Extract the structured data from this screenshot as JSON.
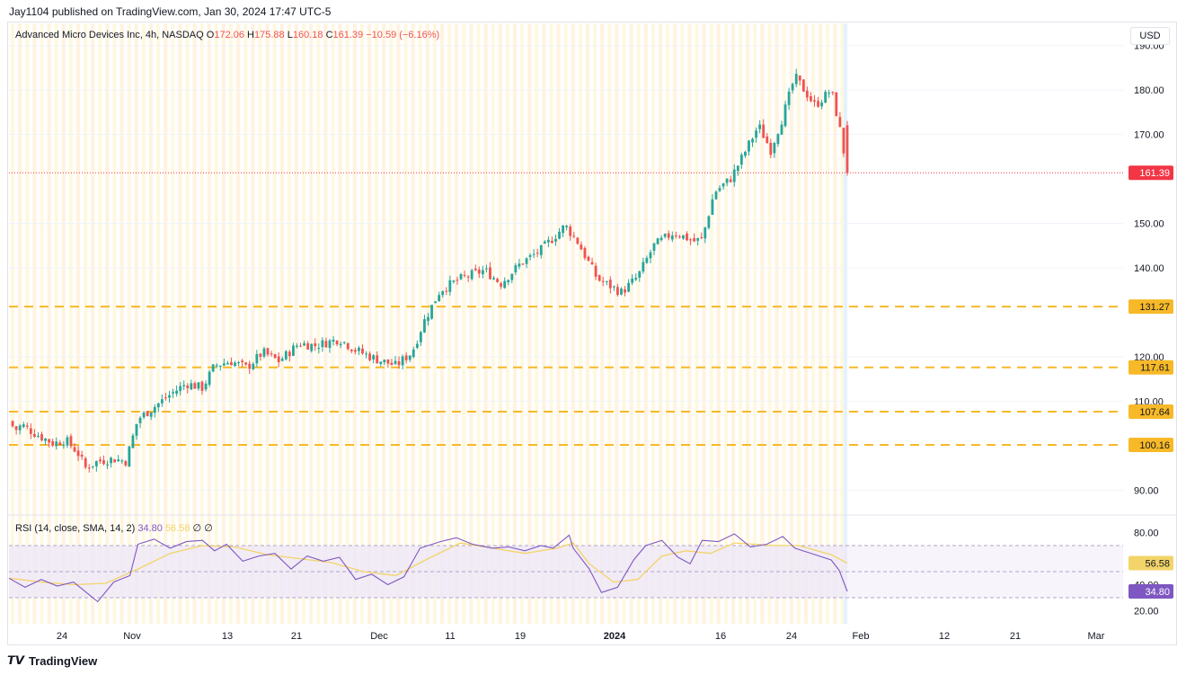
{
  "header": {
    "published": "Jay1104 published on TradingView.com, Jan 30, 2024 17:47 UTC-5"
  },
  "legend": {
    "symbol": "Advanced Micro Devices Inc, 4h, NASDAQ",
    "o_label": "O",
    "o_value": "172.06",
    "h_label": "H",
    "h_value": "175.88",
    "l_label": "L",
    "l_value": "160.18",
    "c_label": "C",
    "c_value": "161.39",
    "change": "−10.59 (−6.16%)"
  },
  "currency": "USD",
  "rsi_legend": {
    "label": "RSI (14, close, SMA, 14, 2)",
    "rsi": "34.80",
    "sma": "56.58",
    "sym1": "∅",
    "sym2": "∅"
  },
  "footer": {
    "brand": "TradingView"
  },
  "colors": {
    "up": "#26a69a",
    "down": "#ef5350",
    "level": "#f7b928",
    "rsi": "#7e57c2",
    "rsi_sma": "#f3d468",
    "rsi_band": "#ede7f6",
    "last_price": "#f23645"
  },
  "chart_data": [
    {
      "type": "candlestick",
      "title": "Advanced Micro Devices Inc, 4h, NASDAQ",
      "y_axis": {
        "range": [
          85,
          195
        ],
        "ticks": [
          "90.00",
          "110.00",
          "120.00",
          "140.00",
          "150.00",
          "170.00",
          "180.00",
          "190.00"
        ],
        "tick_values": [
          90,
          110,
          120,
          140,
          150,
          170,
          180,
          190
        ]
      },
      "x_axis": {
        "tick_labels": [
          "24",
          "Nov",
          "13",
          "21",
          "Dec",
          "11",
          "19",
          "2024",
          "16",
          "24",
          "Feb",
          "12",
          "21",
          "Mar"
        ]
      },
      "price_path": [
        [
          105.5,
          0
        ],
        [
          103.5,
          0.008
        ],
        [
          104.7,
          0.016
        ],
        [
          103,
          0.03
        ],
        [
          100.5,
          0.055
        ],
        [
          101.3,
          0.07
        ],
        [
          98.5,
          0.085
        ],
        [
          95,
          0.095
        ],
        [
          96.5,
          0.11
        ],
        [
          97,
          0.13
        ],
        [
          96.5,
          0.145
        ],
        [
          106,
          0.16
        ],
        [
          108,
          0.175
        ],
        [
          111.5,
          0.2
        ],
        [
          114,
          0.22
        ],
        [
          113,
          0.24
        ],
        [
          118,
          0.255
        ],
        [
          119,
          0.275
        ],
        [
          117.5,
          0.295
        ],
        [
          121,
          0.315
        ],
        [
          119,
          0.335
        ],
        [
          123,
          0.36
        ],
        [
          122.5,
          0.38
        ],
        [
          124,
          0.41
        ],
        [
          121.5,
          0.43
        ],
        [
          119.5,
          0.455
        ],
        [
          118,
          0.48
        ],
        [
          121,
          0.5
        ],
        [
          128,
          0.515
        ],
        [
          135,
          0.535
        ],
        [
          137.5,
          0.56
        ],
        [
          139.5,
          0.59
        ],
        [
          136.5,
          0.61
        ],
        [
          141,
          0.635
        ],
        [
          144,
          0.66
        ],
        [
          149.5,
          0.69
        ],
        [
          146,
          0.705
        ],
        [
          137.5,
          0.73
        ],
        [
          134.5,
          0.76
        ],
        [
          138,
          0.78
        ],
        [
          145,
          0.8
        ],
        [
          148,
          0.825
        ],
        [
          146,
          0.85
        ],
        [
          146.5,
          0.86
        ],
        [
          157,
          0.875
        ],
        [
          160,
          0.895
        ],
        [
          165,
          0.91
        ],
        [
          172,
          0.93
        ],
        [
          166.5,
          0.945
        ],
        [
          174,
          0.96
        ],
        [
          183,
          0.975
        ],
        [
          176.5,
          1.0
        ],
        [
          180,
          1.02
        ],
        [
          172.06,
          1.03
        ],
        [
          161.39,
          1.04
        ]
      ],
      "last_close": 161.39,
      "horizontal_levels": [
        131.27,
        117.61,
        107.64,
        100.16
      ],
      "level_labels": [
        "131.27",
        "117.61",
        "107.64",
        "100.16"
      ],
      "last_price_label": "161.39"
    },
    {
      "type": "line",
      "title": "RSI (14, close, SMA, 14, 2)",
      "y_axis": {
        "range": [
          10,
          90
        ],
        "ticks": [
          "20.00",
          "40.00",
          "80.00"
        ],
        "tick_values": [
          20,
          40,
          80
        ]
      },
      "bands": [
        30,
        70
      ],
      "series": [
        {
          "name": "RSI",
          "last": 34.8,
          "path": [
            [
              45,
              0
            ],
            [
              38,
              0.02
            ],
            [
              44,
              0.04
            ],
            [
              39,
              0.06
            ],
            [
              42,
              0.08
            ],
            [
              32,
              0.1
            ],
            [
              27,
              0.11
            ],
            [
              42,
              0.13
            ],
            [
              47,
              0.15
            ],
            [
              71,
              0.16
            ],
            [
              75,
              0.18
            ],
            [
              68,
              0.2
            ],
            [
              73,
              0.22
            ],
            [
              74,
              0.24
            ],
            [
              66,
              0.255
            ],
            [
              71,
              0.27
            ],
            [
              58,
              0.29
            ],
            [
              62,
              0.31
            ],
            [
              64,
              0.33
            ],
            [
              52,
              0.35
            ],
            [
              62,
              0.37
            ],
            [
              58,
              0.39
            ],
            [
              61,
              0.41
            ],
            [
              44,
              0.43
            ],
            [
              48,
              0.45
            ],
            [
              40,
              0.47
            ],
            [
              46,
              0.49
            ],
            [
              68,
              0.51
            ],
            [
              73,
              0.535
            ],
            [
              76,
              0.555
            ],
            [
              71,
              0.575
            ],
            [
              68,
              0.6
            ],
            [
              69,
              0.62
            ],
            [
              66,
              0.64
            ],
            [
              70,
              0.66
            ],
            [
              68,
              0.675
            ],
            [
              78,
              0.695
            ],
            [
              68,
              0.7
            ],
            [
              52,
              0.72
            ],
            [
              34,
              0.735
            ],
            [
              38,
              0.755
            ],
            [
              59,
              0.775
            ],
            [
              70,
              0.79
            ],
            [
              74,
              0.81
            ],
            [
              61,
              0.83
            ],
            [
              56,
              0.845
            ],
            [
              74,
              0.86
            ],
            [
              73,
              0.88
            ],
            [
              79,
              0.9
            ],
            [
              69,
              0.92
            ],
            [
              71,
              0.94
            ],
            [
              77,
              0.96
            ],
            [
              68,
              0.975
            ],
            [
              63,
              1.0
            ],
            [
              59,
              1.02
            ],
            [
              51,
              1.03
            ],
            [
              34.8,
              1.04
            ]
          ]
        },
        {
          "name": "SMA",
          "last": 56.58,
          "path": [
            [
              45,
              0
            ],
            [
              42,
              0.04
            ],
            [
              40,
              0.08
            ],
            [
              41,
              0.12
            ],
            [
              52,
              0.16
            ],
            [
              64,
              0.2
            ],
            [
              70,
              0.24
            ],
            [
              69,
              0.28
            ],
            [
              63,
              0.32
            ],
            [
              60,
              0.36
            ],
            [
              57,
              0.4
            ],
            [
              50,
              0.44
            ],
            [
              47,
              0.48
            ],
            [
              60,
              0.52
            ],
            [
              72,
              0.56
            ],
            [
              68,
              0.6
            ],
            [
              64,
              0.64
            ],
            [
              68,
              0.68
            ],
            [
              72,
              0.7
            ],
            [
              56,
              0.72
            ],
            [
              42,
              0.75
            ],
            [
              44,
              0.78
            ],
            [
              62,
              0.81
            ],
            [
              66,
              0.84
            ],
            [
              64,
              0.87
            ],
            [
              72,
              0.9
            ],
            [
              70,
              0.95
            ],
            [
              70,
              0.98
            ],
            [
              63,
              1.02
            ],
            [
              56.58,
              1.04
            ]
          ]
        }
      ],
      "labels": {
        "rsi": "34.80",
        "sma": "56.58"
      }
    }
  ]
}
